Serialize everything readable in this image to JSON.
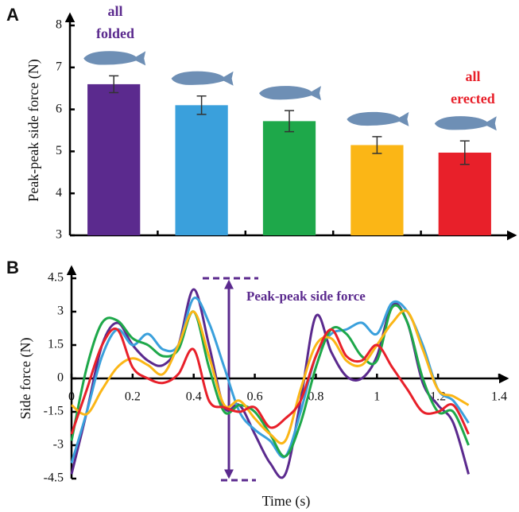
{
  "chart_data": [
    {
      "type": "bar",
      "panel": "A",
      "y_label": "Peak-peak side force (N)",
      "annotations": [
        "all",
        "folded",
        "all",
        "erected"
      ],
      "values": [
        6.6,
        6.1,
        5.72,
        5.15,
        4.97
      ],
      "errors": [
        0.2,
        0.22,
        0.25,
        0.2,
        0.28
      ],
      "colors": [
        "#5b2a8e",
        "#3aa0dc",
        "#1ea84a",
        "#fbb616",
        "#e8202a"
      ],
      "ylim": [
        3,
        8
      ],
      "yticks": [
        3,
        4,
        5,
        6,
        7,
        8
      ]
    },
    {
      "type": "line",
      "panel": "B",
      "y_label": "Side force (N)",
      "x_label": "Time (s)",
      "annotation": "Peak-peak side force",
      "x": [
        0,
        0.05,
        0.1,
        0.15,
        0.2,
        0.25,
        0.3,
        0.35,
        0.4,
        0.45,
        0.5,
        0.55,
        0.6,
        0.65,
        0.7,
        0.75,
        0.8,
        0.85,
        0.9,
        0.95,
        1.0,
        1.05,
        1.1,
        1.15,
        1.2,
        1.25,
        1.3
      ],
      "series": [
        {
          "color": "#5b2a8e",
          "values": [
            -4.3,
            -1.5,
            1.5,
            2.5,
            1.5,
            0.8,
            0.6,
            1.5,
            4.0,
            1.5,
            -1.3,
            -1.2,
            -2.5,
            -3.8,
            -4.3,
            -1.0,
            2.8,
            1.2,
            0.1,
            0.0,
            1.0,
            3.3,
            2.5,
            -0.2,
            -1.2,
            -2.0,
            -4.3
          ]
        },
        {
          "color": "#3aa0dc",
          "values": [
            -3.8,
            -1.5,
            1.0,
            2.2,
            1.5,
            2.0,
            1.3,
            1.5,
            3.6,
            2.5,
            0.5,
            -1.5,
            -2.3,
            -2.8,
            -3.5,
            -1.5,
            1.0,
            2.0,
            2.2,
            2.5,
            2.0,
            3.4,
            3.0,
            1.5,
            -0.5,
            -1.0,
            -2.0
          ]
        },
        {
          "color": "#1ea84a",
          "values": [
            -2.8,
            0.5,
            2.5,
            2.6,
            1.8,
            1.5,
            1.0,
            1.3,
            3.0,
            0.5,
            -1.5,
            -1.2,
            -1.5,
            -2.5,
            -3.5,
            -2.0,
            0.5,
            2.2,
            2.0,
            1.0,
            0.8,
            3.2,
            2.5,
            0.0,
            -1.5,
            -1.5,
            -3.0
          ]
        },
        {
          "color": "#fbb616",
          "values": [
            -1.2,
            -1.6,
            -0.5,
            0.5,
            0.9,
            0.6,
            0.2,
            1.5,
            3.0,
            1.0,
            -1.2,
            -1.0,
            -1.8,
            -2.5,
            -2.8,
            -0.5,
            1.5,
            1.8,
            0.8,
            0.6,
            1.5,
            2.5,
            3.0,
            1.3,
            -0.5,
            -0.8,
            -1.2
          ]
        },
        {
          "color": "#e8202a",
          "values": [
            -2.5,
            -0.5,
            1.5,
            2.2,
            0.5,
            0.0,
            -0.2,
            0.2,
            1.3,
            -1.0,
            -1.3,
            -1.5,
            -1.3,
            -2.2,
            -1.8,
            -1.0,
            1.0,
            2.2,
            1.0,
            0.8,
            1.5,
            0.5,
            -0.5,
            -1.5,
            -1.5,
            -1.2,
            -2.5
          ]
        }
      ],
      "xlim": [
        0,
        1.4
      ],
      "xticks": [
        0,
        0.2,
        0.4,
        0.6,
        0.8,
        1,
        1.2,
        1.4
      ],
      "ylim": [
        -4.5,
        4.5
      ],
      "yticks": [
        -4.5,
        -3,
        -1.5,
        0,
        1.5,
        3,
        4.5
      ]
    }
  ]
}
